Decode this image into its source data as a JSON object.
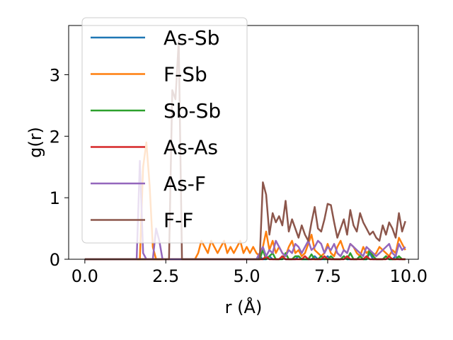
{
  "chart_data": {
    "type": "line",
    "title": "",
    "xlabel": "r (Å)",
    "ylabel": "g(r)",
    "xlim": [
      -0.5,
      10.3
    ],
    "ylim": [
      0,
      3.8
    ],
    "xticks": [
      "0.0",
      "2.5",
      "5.0",
      "7.5",
      "10.0"
    ],
    "xtick_values": [
      0,
      2.5,
      5,
      7.5,
      10
    ],
    "yticks": [
      "0",
      "1",
      "2",
      "3"
    ],
    "ytick_values": [
      0,
      1,
      2,
      3
    ],
    "grid": false,
    "legend_position": "upper-left",
    "x": [
      0.0,
      0.1,
      0.2,
      0.3,
      0.4,
      0.5,
      0.6,
      0.7,
      0.8,
      0.9,
      1.0,
      1.1,
      1.2,
      1.3,
      1.4,
      1.5,
      1.6,
      1.7,
      1.8,
      1.9,
      2.0,
      2.1,
      2.2,
      2.3,
      2.4,
      2.5,
      2.6,
      2.7,
      2.8,
      2.9,
      3.0,
      3.1,
      3.2,
      3.3,
      3.4,
      3.5,
      3.6,
      3.7,
      3.8,
      3.9,
      4.0,
      4.1,
      4.2,
      4.3,
      4.4,
      4.5,
      4.6,
      4.7,
      4.8,
      4.9,
      5.0,
      5.1,
      5.2,
      5.3,
      5.4,
      5.5,
      5.6,
      5.7,
      5.8,
      5.9,
      6.0,
      6.1,
      6.2,
      6.3,
      6.4,
      6.5,
      6.6,
      6.7,
      6.8,
      6.9,
      7.0,
      7.1,
      7.2,
      7.3,
      7.4,
      7.5,
      7.6,
      7.7,
      7.8,
      7.9,
      8.0,
      8.1,
      8.2,
      8.3,
      8.4,
      8.5,
      8.6,
      8.7,
      8.8,
      8.9,
      9.0,
      9.1,
      9.2,
      9.3,
      9.4,
      9.5,
      9.6,
      9.7,
      9.8,
      9.9
    ],
    "series": [
      {
        "name": "As-Sb",
        "color": "#1f77b4",
        "values": [
          0,
          0,
          0,
          0,
          0,
          0,
          0,
          0,
          0,
          0,
          0,
          0,
          0,
          0,
          0,
          0,
          0,
          0,
          0,
          0,
          0,
          0,
          0,
          0,
          0,
          0,
          0,
          0,
          0,
          0,
          0,
          0,
          0,
          0,
          0,
          0,
          0,
          0,
          0,
          0,
          0,
          0,
          0,
          0,
          0,
          0,
          0,
          0,
          0,
          0,
          0,
          0,
          0,
          0,
          0.05,
          0,
          0,
          0.05,
          0,
          0,
          0,
          0.05,
          0,
          0,
          0,
          0,
          0.05,
          0,
          0,
          0,
          0,
          0.05,
          0,
          0,
          0,
          0.05,
          0,
          0,
          0,
          0,
          0.05,
          0,
          0,
          0,
          0,
          0.05,
          0,
          0,
          0.1,
          0,
          0,
          0,
          0,
          0.05,
          0,
          0,
          0.05,
          0,
          0,
          0
        ]
      },
      {
        "name": "F-Sb",
        "color": "#ff7f0e",
        "values": [
          0,
          0,
          0,
          0,
          0,
          0,
          0,
          0,
          0,
          0,
          0,
          0,
          0,
          0,
          0,
          0,
          0,
          0,
          1.5,
          1.9,
          1.2,
          0.2,
          0,
          0,
          0,
          0,
          0,
          0,
          0,
          0,
          0,
          0,
          0,
          0,
          0,
          0.1,
          0.3,
          0.2,
          0.1,
          0.3,
          0.2,
          0.1,
          0.2,
          0.3,
          0.1,
          0.2,
          0.1,
          0.2,
          0.3,
          0.1,
          0.2,
          0.1,
          0.2,
          0.1,
          0.05,
          0.2,
          0.45,
          0.15,
          0.3,
          0.1,
          0.2,
          0.1,
          0.05,
          0.2,
          0.3,
          0.1,
          0.15,
          0.05,
          0.1,
          0.25,
          0.4,
          0.15,
          0.1,
          0.05,
          0.1,
          0.25,
          0.1,
          0.05,
          0.2,
          0.3,
          0.15,
          0.1,
          0.25,
          0.2,
          0.1,
          0.05,
          0.2,
          0.1,
          0.15,
          0.05,
          0.1,
          0.2,
          0.15,
          0.1,
          0.05,
          0.15,
          0.1,
          0.35,
          0.25,
          0.15
        ]
      },
      {
        "name": "Sb-Sb",
        "color": "#2ca02c",
        "values": [
          0,
          0,
          0,
          0,
          0,
          0,
          0,
          0,
          0,
          0,
          0,
          0,
          0,
          0,
          0,
          0,
          0,
          0,
          0,
          0,
          0,
          0,
          0,
          0,
          0,
          0,
          0,
          0,
          0,
          0,
          0,
          0,
          0,
          0,
          0,
          0,
          0,
          0,
          0,
          0,
          0,
          0,
          0,
          0,
          0,
          0,
          0,
          0,
          0,
          0,
          0,
          0,
          0,
          0,
          0,
          0.15,
          0,
          0.05,
          0.1,
          0,
          0,
          0,
          0.1,
          0,
          0,
          0.05,
          0.05,
          0,
          0,
          0,
          0.08,
          0,
          0,
          0.05,
          0,
          0,
          0.05,
          0,
          0,
          0,
          0.05,
          0,
          0.1,
          0,
          0,
          0.05,
          0,
          0,
          0.15,
          0.05,
          0,
          0,
          0,
          0.05,
          0,
          0,
          0,
          0.05,
          0,
          0
        ]
      },
      {
        "name": "As-As",
        "color": "#d62728",
        "values": [
          0,
          0,
          0,
          0,
          0,
          0,
          0,
          0,
          0,
          0,
          0,
          0,
          0,
          0,
          0,
          0,
          0,
          0,
          0,
          0,
          0,
          0,
          0,
          0,
          0,
          0,
          0,
          0,
          0,
          0,
          0,
          0,
          0,
          0,
          0,
          0,
          0,
          0,
          0,
          0,
          0,
          0,
          0,
          0,
          0,
          0,
          0,
          0,
          0,
          0,
          0,
          0,
          0,
          0,
          0,
          0,
          0.05,
          0,
          0,
          0,
          0,
          0.05,
          0,
          0,
          0,
          0,
          0,
          0,
          0.05,
          0,
          0,
          0,
          0,
          0,
          0.05,
          0,
          0,
          0,
          0,
          0,
          0,
          0.05,
          0,
          0,
          0,
          0,
          0,
          0.05,
          0,
          0,
          0,
          0,
          0,
          0,
          0.05,
          0,
          0,
          0,
          0,
          0
        ]
      },
      {
        "name": "As-F",
        "color": "#9467bd",
        "values": [
          0,
          0,
          0,
          0,
          0,
          0,
          0,
          0,
          0,
          0,
          0,
          0,
          0,
          0,
          0,
          0,
          0,
          1.6,
          0.1,
          0,
          0,
          0,
          0.5,
          0.3,
          0,
          0,
          0,
          0,
          0,
          0,
          0,
          0,
          0,
          0,
          0,
          0,
          0,
          0,
          0,
          0,
          0,
          0,
          0,
          0,
          0,
          0,
          0,
          0,
          0,
          0,
          0,
          0,
          0,
          0,
          0.1,
          0.2,
          0.05,
          0.15,
          0.1,
          0.3,
          0.2,
          0.1,
          0.05,
          0.15,
          0.1,
          0.25,
          0.2,
          0.1,
          0.2,
          0.3,
          0.15,
          0.2,
          0.3,
          0.25,
          0.1,
          0.2,
          0.15,
          0.25,
          0.1,
          0.05,
          0.15,
          0.1,
          0.25,
          0.2,
          0.15,
          0.1,
          0.05,
          0.2,
          0.15,
          0.1,
          0.05,
          0.1,
          0.15,
          0.2,
          0.25,
          0.1,
          0.05,
          0.25,
          0.15,
          0.2
        ]
      },
      {
        "name": "F-F",
        "color": "#8c564b",
        "values": [
          0,
          0,
          0,
          0,
          0,
          0,
          0,
          0,
          0,
          0,
          0,
          0,
          0,
          0,
          0,
          0,
          0,
          0,
          0,
          0,
          0,
          0,
          0,
          0,
          0,
          0,
          0,
          2.75,
          2.6,
          3.55,
          0,
          0,
          0,
          0,
          0,
          0,
          0,
          0,
          0,
          0,
          0,
          0,
          0,
          0,
          0,
          0,
          0,
          0,
          0,
          0,
          0,
          0,
          0,
          0,
          0,
          1.25,
          1.05,
          0.4,
          0.75,
          0.6,
          0.7,
          0.55,
          0.95,
          0.45,
          0.65,
          0.5,
          0.35,
          0.55,
          0.4,
          0.3,
          0.6,
          0.85,
          0.5,
          0.45,
          0.65,
          0.9,
          0.88,
          0.6,
          0.35,
          0.5,
          0.65,
          0.4,
          0.8,
          0.55,
          0.45,
          0.75,
          0.6,
          0.5,
          0.4,
          0.45,
          0.35,
          0.3,
          0.55,
          0.4,
          0.6,
          0.5,
          0.35,
          0.75,
          0.45,
          0.62
        ]
      }
    ]
  }
}
